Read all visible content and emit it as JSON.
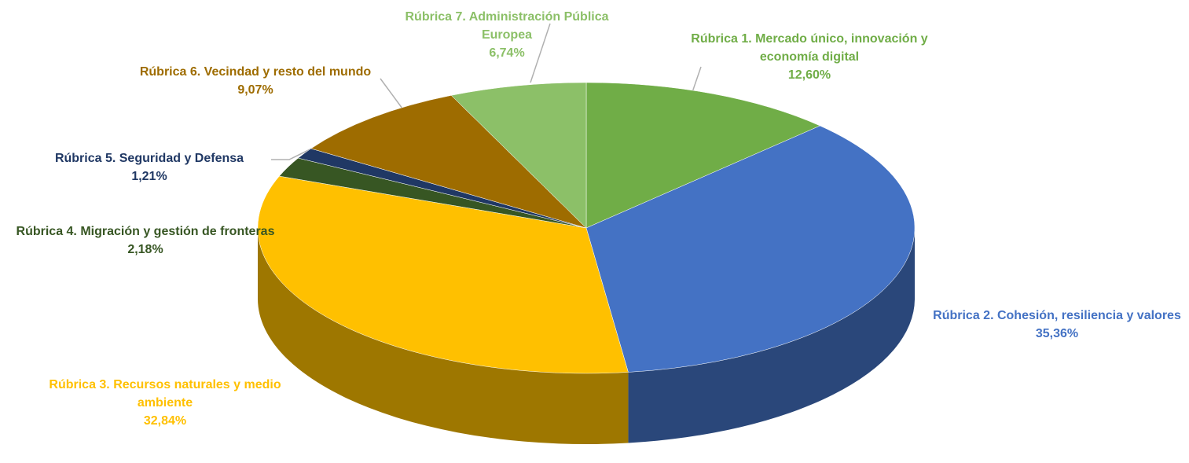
{
  "chart_data": {
    "type": "pie",
    "categories": [
      "Rúbrica 1. Mercado único, innovación y economía digital",
      "Rúbrica 2. Cohesión, resiliencia y valores",
      "Rúbrica 3. Recursos naturales y medio ambiente",
      "Rúbrica 4. Migración y gestión de fronteras",
      "Rúbrica 5. Seguridad y Defensa",
      "Rúbrica 6. Vecindad y resto del mundo",
      "Rúbrica 7. Administración Pública Europea"
    ],
    "values": [
      12.6,
      35.36,
      32.84,
      2.18,
      1.21,
      9.07,
      6.74
    ],
    "value_labels": [
      "12,60%",
      "35,36%",
      "32,84%",
      "2,18%",
      "1,21%",
      "9,07%",
      "6,74%"
    ],
    "colors": [
      "#70ad47",
      "#4472c4",
      "#ffc000",
      "#375623",
      "#203864",
      "#9e6c00",
      "#8cc068"
    ]
  }
}
